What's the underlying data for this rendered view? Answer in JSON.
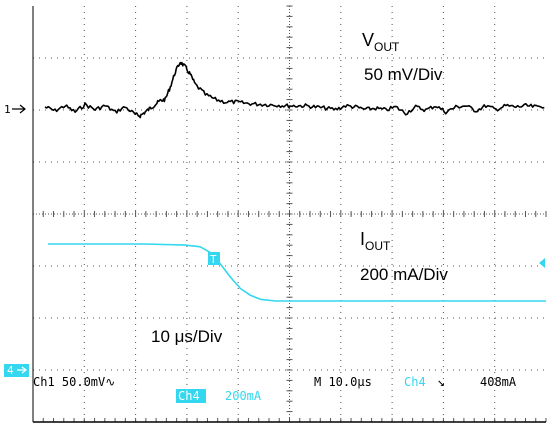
{
  "labels": {
    "vout_main": "V",
    "vout_sub": "OUT",
    "vout_scale": "50 mV/Div",
    "iout_main": "I",
    "iout_sub": "OUT",
    "iout_scale": "200 mA/Div",
    "time_scale": "10 μs/Div"
  },
  "markers": {
    "ch1_ref": "1",
    "ch4_ref": "4",
    "trigger": "T"
  },
  "status": {
    "ch1": "Ch1  50.0mV",
    "ch1_coupling": "∿",
    "ch4_badge": "Ch4",
    "ch4_scale": "200mA",
    "timebase": "M 10.0μs",
    "trig_source": "Ch4",
    "trig_slope": "↘",
    "trig_level": "408mA"
  },
  "colors": {
    "ch1": "#000000",
    "ch4": "#33d7f0",
    "grid": "#555555"
  },
  "chart_data": {
    "type": "line",
    "xlim": [
      0,
      100
    ],
    "grid": true,
    "series": [
      {
        "name": "VOUT",
        "color": "#000000",
        "x": [
          0,
          2,
          4,
          6,
          8,
          10,
          12,
          14,
          16,
          18,
          19,
          20,
          21,
          22,
          23,
          24,
          25,
          26,
          27,
          28,
          29,
          30,
          32,
          34,
          36,
          38,
          40,
          42,
          44,
          46,
          48,
          50,
          52,
          54,
          56,
          58,
          60,
          62,
          64,
          66,
          68,
          70,
          72,
          74,
          76,
          78,
          80,
          82,
          84,
          86,
          88,
          90,
          92,
          94,
          96,
          98,
          100
        ],
        "y": [
          0,
          -0.15,
          0.05,
          -0.2,
          0.1,
          -0.1,
          0.05,
          -0.2,
          0.0,
          -0.3,
          -0.35,
          -0.2,
          -0.05,
          0.1,
          0.25,
          0.3,
          0.8,
          1.4,
          1.8,
          1.6,
          1.3,
          0.9,
          0.5,
          0.3,
          0.2,
          0.2,
          0.15,
          0.12,
          0.1,
          0.08,
          0.05,
          0.05,
          0.05,
          0.0,
          -0.05,
          -0.1,
          0.05,
          0.0,
          -0.1,
          -0.05,
          -0.12,
          0.0,
          -0.25,
          0.0,
          -0.12,
          0.05,
          -0.2,
          0.0,
          0.05,
          -0.15,
          0.05,
          -0.1,
          0.05,
          0.0,
          0.05,
          0.0,
          0.05
        ]
      },
      {
        "name": "IOUT",
        "color": "#33d7f0",
        "x": [
          0,
          10,
          20,
          28,
          31,
          33,
          35,
          37,
          39,
          41,
          43,
          46,
          50,
          60,
          70,
          80,
          90,
          100
        ],
        "y": [
          1.0,
          1.0,
          1.0,
          0.98,
          0.95,
          0.85,
          0.65,
          0.42,
          0.22,
          0.1,
          0.03,
          0.0,
          0.0,
          0.0,
          0.0,
          0.0,
          0.0,
          0.0
        ]
      }
    ]
  }
}
